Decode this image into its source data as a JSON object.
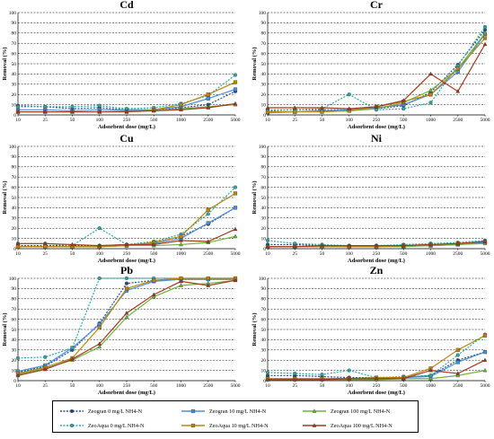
{
  "chart_data": {
    "type": "line",
    "x": [
      10,
      25,
      50,
      100,
      250,
      500,
      1000,
      2500,
      5000
    ],
    "xlabel": "Adsorbent dose (mg/L)",
    "ylabel": "Removal (%)",
    "ylim": [
      0,
      100
    ],
    "yticks": [
      0,
      10,
      20,
      30,
      40,
      50,
      60,
      70,
      80,
      90,
      100
    ],
    "grid": true,
    "legend_position": "bottom",
    "series_styles": [
      {
        "name": "Zeogran 0 mg/L NH4-N",
        "color": "#2a4a8c",
        "marker": "circle",
        "dash": "2 1.5"
      },
      {
        "name": "Zeogran 10 mg/L NH4-N",
        "color": "#4a90d6",
        "marker": "square",
        "dash": ""
      },
      {
        "name": "Zeogran 100 mg/L NH4-N",
        "color": "#6cb33f",
        "marker": "triangle",
        "dash": ""
      },
      {
        "name": "ZeoAqua 0 mg/L NH4-N",
        "color": "#2fa5a5",
        "marker": "circle",
        "dash": "2 1.5"
      },
      {
        "name": "ZeoAqua 10 mg/L NH4-N",
        "color": "#b8860b",
        "marker": "square",
        "dash": ""
      },
      {
        "name": "ZeoAqua 100 mg/L NH4-N",
        "color": "#9e3a1e",
        "marker": "triangle",
        "dash": ""
      }
    ],
    "panels": [
      {
        "title": "Cd",
        "series": [
          {
            "name": "Zeogran 0 mg/L NH4-N",
            "values": [
              9,
              8,
              6,
              7,
              5,
              5,
              7,
              10,
              23
            ]
          },
          {
            "name": "Zeogran 10 mg/L NH4-N",
            "values": [
              5,
              5,
              4,
              5,
              5,
              5,
              8,
              16,
              25
            ]
          },
          {
            "name": "Zeogran 100 mg/L NH4-N",
            "values": [
              3,
              3,
              3,
              3,
              4,
              4,
              6,
              8,
              10
            ]
          },
          {
            "name": "ZeoAqua 0 mg/L NH4-N",
            "values": [
              8,
              8,
              8,
              9,
              6,
              7,
              11,
              19,
              39
            ]
          },
          {
            "name": "ZeoAqua 10 mg/L NH4-N",
            "values": [
              3,
              3,
              3,
              3,
              3,
              5,
              10,
              20,
              32
            ]
          },
          {
            "name": "ZeoAqua 100 mg/L NH4-N",
            "values": [
              3,
              3,
              3,
              3,
              3,
              4,
              5,
              7,
              11
            ]
          }
        ]
      },
      {
        "title": "Cr",
        "series": [
          {
            "name": "Zeogran 0 mg/L NH4-N",
            "values": [
              4,
              5,
              5,
              5,
              6,
              9,
              22,
              49,
              83
            ]
          },
          {
            "name": "Zeogran 10 mg/L NH4-N",
            "values": [
              3,
              3,
              4,
              5,
              7,
              10,
              20,
              42,
              79
            ]
          },
          {
            "name": "Zeogran 100 mg/L NH4-N",
            "values": [
              2,
              3,
              3,
              4,
              6,
              12,
              24,
              45,
              80
            ]
          },
          {
            "name": "ZeoAqua 0 mg/L NH4-N",
            "values": [
              5,
              5,
              6,
              20,
              5,
              6,
              12,
              48,
              86
            ]
          },
          {
            "name": "ZeoAqua 10 mg/L NH4-N",
            "values": [
              3,
              3,
              3,
              4,
              8,
              13,
              20,
              45,
              75
            ]
          },
          {
            "name": "ZeoAqua 100 mg/L NH4-N",
            "values": [
              7,
              7,
              7,
              6,
              8,
              14,
              40,
              23,
              69
            ]
          }
        ]
      },
      {
        "title": "Cu",
        "series": [
          {
            "name": "Zeogran 0 mg/L NH4-N",
            "values": [
              3,
              3,
              3,
              3,
              4,
              6,
              12,
              24,
              40
            ]
          },
          {
            "name": "Zeogran 10 mg/L NH4-N",
            "values": [
              2,
              2,
              2,
              2,
              3,
              5,
              10,
              25,
              40
            ]
          },
          {
            "name": "Zeogran 100 mg/L NH4-N",
            "values": [
              2,
              2,
              2,
              2,
              3,
              3,
              4,
              6,
              12
            ]
          },
          {
            "name": "ZeoAqua 0 mg/L NH4-N",
            "values": [
              5,
              5,
              3,
              20,
              4,
              7,
              14,
              34,
              60
            ]
          },
          {
            "name": "ZeoAqua 10 mg/L NH4-N",
            "values": [
              2,
              2,
              2,
              2,
              3,
              6,
              12,
              38,
              54
            ]
          },
          {
            "name": "ZeoAqua 100 mg/L NH4-N",
            "values": [
              5,
              5,
              4,
              3,
              4,
              4,
              8,
              7,
              19
            ]
          }
        ]
      },
      {
        "title": "Ni",
        "series": [
          {
            "name": "Zeogran 0 mg/L NH4-N",
            "values": [
              4,
              4,
              3,
              2,
              3,
              3,
              3,
              4,
              6
            ]
          },
          {
            "name": "Zeogran 10 mg/L NH4-N",
            "values": [
              2,
              2,
              2,
              2,
              2,
              3,
              3,
              4,
              6
            ]
          },
          {
            "name": "Zeogran 100 mg/L NH4-N",
            "values": [
              2,
              2,
              2,
              2,
              2,
              2,
              3,
              4,
              5
            ]
          },
          {
            "name": "ZeoAqua 0 mg/L NH4-N",
            "values": [
              8,
              5,
              4,
              3,
              3,
              4,
              5,
              6,
              8
            ]
          },
          {
            "name": "ZeoAqua 10 mg/L NH4-N",
            "values": [
              2,
              2,
              2,
              2,
              2,
              3,
              4,
              5,
              7
            ]
          },
          {
            "name": "ZeoAqua 100 mg/L NH4-N",
            "values": [
              2,
              2,
              3,
              3,
              3,
              3,
              4,
              5,
              7
            ]
          }
        ]
      },
      {
        "title": "Pb",
        "series": [
          {
            "name": "Zeogran 0 mg/L NH4-N",
            "values": [
              8,
              14,
              30,
              56,
              95,
              98,
              99,
              99,
              99
            ]
          },
          {
            "name": "Zeogran 10 mg/L NH4-N",
            "values": [
              9,
              15,
              32,
              55,
              88,
              97,
              99,
              99,
              99
            ]
          },
          {
            "name": "Zeogran 100 mg/L NH4-N",
            "values": [
              6,
              12,
              20,
              33,
              62,
              82,
              93,
              95,
              98
            ]
          },
          {
            "name": "ZeoAqua 0 mg/L NH4-N",
            "values": [
              22,
              23,
              32,
              100,
              100,
              100,
              100,
              100,
              100
            ]
          },
          {
            "name": "ZeoAqua 10 mg/L NH4-N",
            "values": [
              7,
              13,
              22,
              52,
              90,
              98,
              100,
              100,
              100
            ]
          },
          {
            "name": "ZeoAqua 100 mg/L NH4-N",
            "values": [
              5,
              11,
              21,
              36,
              66,
              84,
              97,
              93,
              98
            ]
          }
        ]
      },
      {
        "title": "Zn",
        "series": [
          {
            "name": "Zeogran 0 mg/L NH4-N",
            "values": [
              5,
              5,
              4,
              3,
              3,
              3,
              5,
              20,
              28
            ]
          },
          {
            "name": "Zeogran 10 mg/L NH4-N",
            "values": [
              2,
              2,
              2,
              2,
              2,
              3,
              4,
              18,
              28
            ]
          },
          {
            "name": "Zeogran 100 mg/L NH4-N",
            "values": [
              1,
              1,
              1,
              1,
              1,
              2,
              2,
              5,
              10
            ]
          },
          {
            "name": "ZeoAqua 0 mg/L NH4-N",
            "values": [
              8,
              7,
              6,
              10,
              3,
              4,
              5,
              25,
              45
            ]
          },
          {
            "name": "ZeoAqua 10 mg/L NH4-N",
            "values": [
              2,
              2,
              2,
              2,
              3,
              3,
              12,
              30,
              44
            ]
          },
          {
            "name": "ZeoAqua 100 mg/L NH4-N",
            "values": [
              1,
              1,
              1,
              2,
              2,
              2,
              10,
              7,
              20
            ]
          }
        ]
      }
    ]
  }
}
